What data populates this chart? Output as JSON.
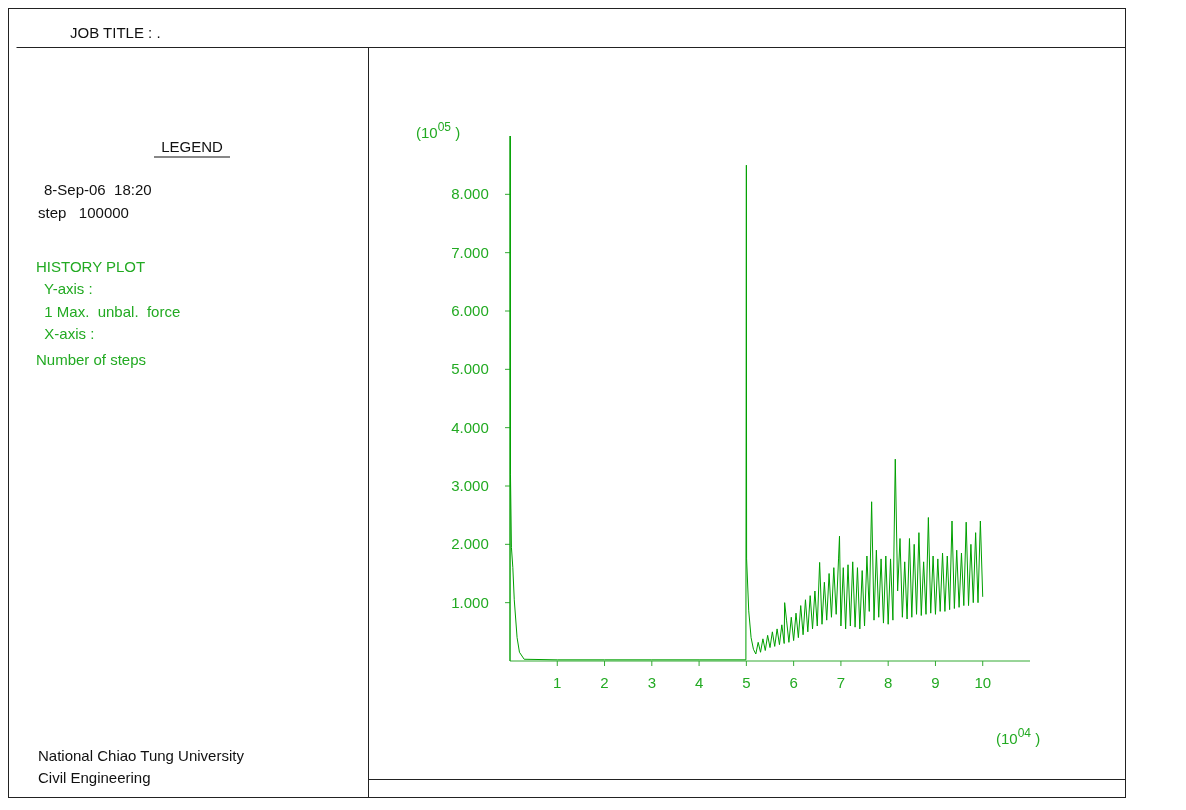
{
  "chart_data": {
    "type": "line",
    "title": "JOB TITLE : .",
    "xlabel": "(10$^{04}$ )",
    "ylabel": "(10$^{05}$ )",
    "annotations": [
      "LEGEND",
      "8-Sep-06  18:20",
      "step   100000",
      "HISTORY PLOT",
      "  Y-axis :",
      "  1 Max.  unbal.  force",
      "  X-axis :",
      "Number of steps",
      "National Chiao Tung University",
      "Civil Engineering"
    ],
    "xlim": [
      0,
      11
    ],
    "ylim": [
      0,
      9
    ],
    "xticks": [
      1,
      2,
      3,
      4,
      5,
      6,
      7,
      8,
      9,
      10
    ],
    "yticks": [
      {
        "value": 1,
        "label": "1.000"
      },
      {
        "value": 2,
        "label": "2.000"
      },
      {
        "value": 3,
        "label": "3.000"
      },
      {
        "value": 4,
        "label": "4.000"
      },
      {
        "value": 5,
        "label": "5.000"
      },
      {
        "value": 6,
        "label": "6.000"
      },
      {
        "value": 7,
        "label": "7.000"
      },
      {
        "value": 8,
        "label": "8.000"
      }
    ],
    "grid": false,
    "marker": "none",
    "line_style": "solid",
    "series": [
      {
        "color": "#00a000",
        "x": [
          0,
          0.005,
          0.01,
          0.03,
          0.06,
          0.09,
          0.15,
          0.2,
          0.3,
          1,
          2,
          3,
          4,
          4.99,
          5.0,
          5.005,
          5.05,
          5.1,
          5.15,
          5.2,
          5.25,
          5.3,
          5.35,
          5.4,
          5.45,
          5.5,
          5.55,
          5.6,
          5.65,
          5.7,
          5.75,
          5.8,
          5.81,
          5.85,
          5.9,
          5.95,
          6.0,
          6.05,
          6.1,
          6.15,
          6.2,
          6.25,
          6.3,
          6.35,
          6.4,
          6.45,
          6.5,
          6.55,
          6.6,
          6.65,
          6.7,
          6.75,
          6.8,
          6.85,
          6.9,
          6.95,
          6.97,
          7.0,
          7.05,
          7.1,
          7.15,
          7.2,
          7.25,
          7.3,
          7.35,
          7.4,
          7.45,
          7.5,
          7.55,
          7.6,
          7.65,
          7.7,
          7.75,
          7.8,
          7.85,
          7.9,
          7.95,
          8.0,
          8.05,
          8.1,
          8.15,
          8.2,
          8.25,
          8.3,
          8.35,
          8.4,
          8.45,
          8.5,
          8.55,
          8.6,
          8.65,
          8.7,
          8.75,
          8.8,
          8.85,
          8.9,
          8.95,
          9.0,
          9.05,
          9.1,
          9.15,
          9.2,
          9.25,
          9.3,
          9.35,
          9.4,
          9.45,
          9.5,
          9.55,
          9.6,
          9.65,
          9.7,
          9.75,
          9.8,
          9.85,
          9.9,
          9.95,
          10.0
        ],
        "values": [
          0,
          9.0,
          3.2,
          1.95,
          1.6,
          1.05,
          0.4,
          0.15,
          0.03,
          0.02,
          0.02,
          0.02,
          0.02,
          0.02,
          8.5,
          1.75,
          0.86,
          0.4,
          0.2,
          0.12,
          0.32,
          0.15,
          0.38,
          0.18,
          0.44,
          0.23,
          0.5,
          0.25,
          0.55,
          0.28,
          0.62,
          0.3,
          1.0,
          0.7,
          0.32,
          0.75,
          0.35,
          0.82,
          0.4,
          0.95,
          0.45,
          1.05,
          0.5,
          1.12,
          0.55,
          1.2,
          0.6,
          1.69,
          0.63,
          1.35,
          0.7,
          1.5,
          0.75,
          1.6,
          0.8,
          1.75,
          2.14,
          0.6,
          1.6,
          0.55,
          1.65,
          0.6,
          1.7,
          0.58,
          1.6,
          0.55,
          1.55,
          0.6,
          1.8,
          0.85,
          2.73,
          0.7,
          1.9,
          0.75,
          1.75,
          0.65,
          1.8,
          0.63,
          1.75,
          0.7,
          3.46,
          1.2,
          2.1,
          0.75,
          1.7,
          0.72,
          2.1,
          0.75,
          2.0,
          0.8,
          2.2,
          0.78,
          1.7,
          0.8,
          2.46,
          0.82,
          1.8,
          0.8,
          1.75,
          0.85,
          1.85,
          0.85,
          1.8,
          0.88,
          2.4,
          0.9,
          1.9,
          0.92,
          1.85,
          0.95,
          2.38,
          0.95,
          2.0,
          1.0,
          2.2,
          1.0,
          2.4,
          1.1
        ]
      }
    ]
  }
}
